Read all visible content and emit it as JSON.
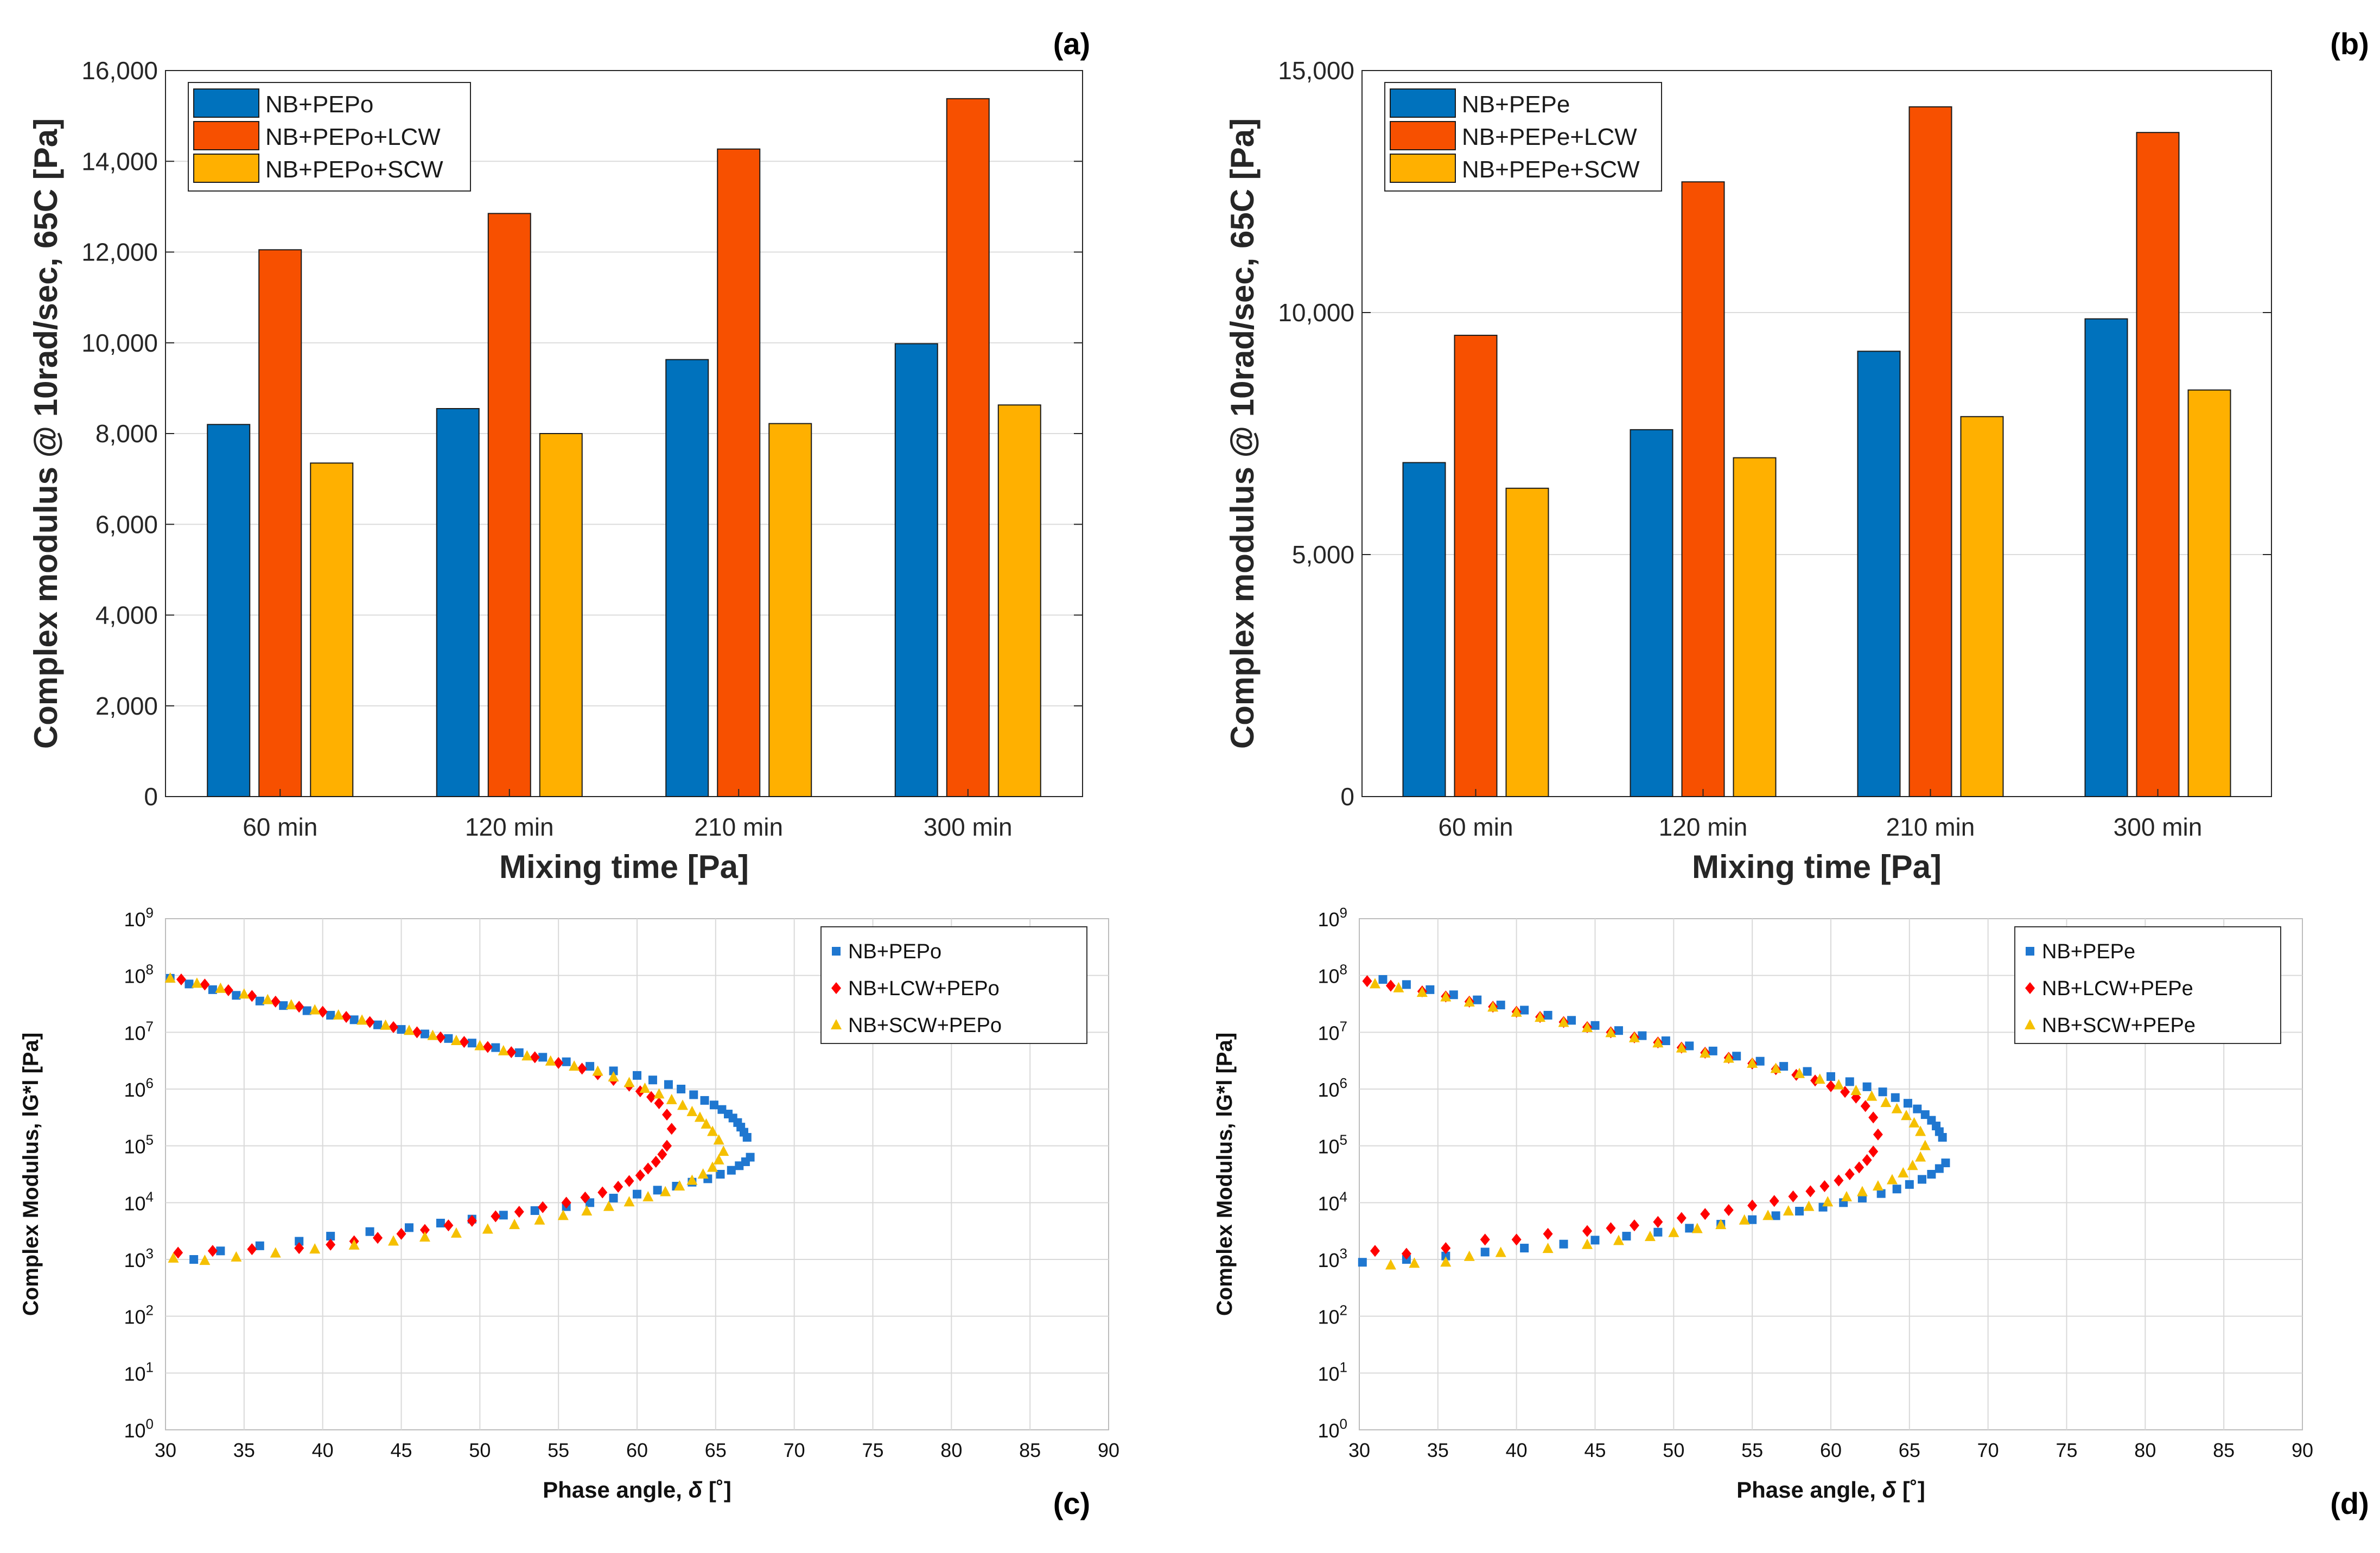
{
  "colors": {
    "blue": "#0072BD",
    "orange": "#F75000",
    "yellow": "#FFB000",
    "red": "#FF0000",
    "lightblue": "#1F77D0",
    "gold": "#F5C000"
  },
  "chart_data": [
    {
      "panel": "(a)",
      "type": "bar",
      "categories": [
        "60 min",
        "120 min",
        "210 min",
        "300 min"
      ],
      "series": [
        {
          "name": "NB+PEPo",
          "values": [
            8200,
            8550,
            9630,
            9980
          ]
        },
        {
          "name": "NB+PEPo+LCW",
          "values": [
            12050,
            12850,
            14270,
            15380
          ]
        },
        {
          "name": "NB+PEPo+SCW",
          "values": [
            7350,
            8000,
            8220,
            8630
          ]
        }
      ],
      "xlabel": "Mixing time [Pa]",
      "ylabel": "Complex modulus @ 10rad/sec, 65C [Pa]",
      "ylim": [
        0,
        16000
      ],
      "yticks": [
        0,
        2000,
        4000,
        6000,
        8000,
        10000,
        12000,
        14000,
        16000
      ],
      "ytick_labels": [
        "0",
        "2,000",
        "4,000",
        "6,000",
        "8,000",
        "10,000",
        "12,000",
        "14,000",
        "16,000"
      ],
      "legend": "top-left",
      "grid": true
    },
    {
      "panel": "(b)",
      "type": "bar",
      "categories": [
        "60 min",
        "120 min",
        "210 min",
        "300 min"
      ],
      "series": [
        {
          "name": "NB+PEPe",
          "values": [
            6900,
            7580,
            9200,
            9870
          ]
        },
        {
          "name": "NB+PEPe+LCW",
          "values": [
            9530,
            12700,
            14250,
            13720
          ]
        },
        {
          "name": "NB+PEPe+SCW",
          "values": [
            6370,
            7000,
            7850,
            8400
          ]
        }
      ],
      "xlabel": "Mixing time [Pa]",
      "ylabel": "Complex modulus @ 10rad/sec, 65C [Pa]",
      "ylim": [
        0,
        15000
      ],
      "yticks": [
        0,
        5000,
        10000,
        15000
      ],
      "ytick_labels": [
        "0",
        "5,000",
        "10,000",
        "15,000"
      ],
      "legend": "top-left",
      "grid": true
    },
    {
      "panel": "(c)",
      "type": "scatter",
      "xlabel_main": "Phase angle, ",
      "xlabel_symbol": "δ",
      "xlabel_unit": " [˚]",
      "ylabel": "Complex Modulus, lG*l [Pa]",
      "xlim": [
        30,
        90
      ],
      "xticks": [
        30,
        35,
        40,
        45,
        50,
        55,
        60,
        65,
        70,
        75,
        80,
        85,
        90
      ],
      "ylim_log10": [
        0,
        9
      ],
      "yscale": "log",
      "legend": "top-right",
      "grid": true,
      "series": [
        {
          "name": "NB+PEPo",
          "marker": "square",
          "peak": 67.2,
          "x": [
            30.3,
            31.5,
            33.0,
            34.5,
            36.0,
            37.5,
            39.0,
            40.5,
            42.0,
            43.5,
            45.0,
            46.5,
            48.0,
            49.5,
            51.0,
            52.5,
            54.0,
            55.5,
            57.0,
            58.5,
            60.0,
            61.0,
            62.0,
            62.8,
            63.6,
            64.3,
            64.9,
            65.4,
            65.8,
            66.1,
            66.4,
            66.6,
            66.8,
            67.0,
            67.2,
            66.9,
            66.5,
            66.0,
            65.3,
            64.5,
            63.5,
            62.5,
            61.3,
            60.0,
            58.5,
            57.0,
            55.5,
            53.5,
            51.5,
            49.5,
            47.5,
            45.5,
            43.0,
            40.5,
            38.5,
            36.0,
            33.5,
            31.8
          ],
          "log_y": [
            7.95,
            7.85,
            7.75,
            7.65,
            7.55,
            7.47,
            7.38,
            7.3,
            7.22,
            7.13,
            7.05,
            6.97,
            6.89,
            6.81,
            6.73,
            6.64,
            6.56,
            6.48,
            6.4,
            6.32,
            6.24,
            6.16,
            6.08,
            6.0,
            5.9,
            5.8,
            5.72,
            5.64,
            5.56,
            5.49,
            5.41,
            5.33,
            5.24,
            5.15,
            4.8,
            4.72,
            4.65,
            4.57,
            4.5,
            4.42,
            4.36,
            4.29,
            4.22,
            4.15,
            4.08,
            4.0,
            3.93,
            3.86,
            3.78,
            3.71,
            3.64,
            3.56,
            3.49,
            3.41,
            3.32,
            3.24,
            3.15,
            3.0
          ]
        },
        {
          "name": "NB+LCW+PEPo",
          "marker": "diamond",
          "peak": 62.2,
          "x": [
            31.0,
            32.5,
            34.0,
            35.5,
            37.0,
            38.5,
            40.0,
            41.5,
            43.0,
            44.5,
            46.0,
            47.5,
            49.0,
            50.5,
            52.0,
            53.5,
            55.0,
            56.5,
            57.5,
            58.5,
            59.5,
            60.2,
            60.9,
            61.4,
            61.9,
            62.2,
            61.9,
            61.6,
            61.2,
            60.7,
            60.2,
            59.5,
            58.8,
            57.8,
            56.7,
            55.5,
            54.0,
            52.5,
            51.0,
            49.5,
            48.0,
            46.5,
            45.0,
            43.5,
            42.0,
            40.5,
            38.5,
            35.5,
            33.0,
            30.8
          ],
          "log_y": [
            7.93,
            7.84,
            7.74,
            7.64,
            7.54,
            7.45,
            7.36,
            7.27,
            7.18,
            7.09,
            7.0,
            6.91,
            6.83,
            6.74,
            6.65,
            6.56,
            6.46,
            6.36,
            6.26,
            6.16,
            6.06,
            5.96,
            5.86,
            5.75,
            5.55,
            5.3,
            5.0,
            4.85,
            4.72,
            4.6,
            4.48,
            4.38,
            4.28,
            4.18,
            4.09,
            4.0,
            3.92,
            3.84,
            3.76,
            3.68,
            3.6,
            3.52,
            3.45,
            3.38,
            3.32,
            3.26,
            3.2,
            3.18,
            3.15,
            3.12
          ]
        },
        {
          "name": "NB+SCW+PEPo",
          "marker": "triangle",
          "peak": 65.5,
          "x": [
            30.3,
            32.0,
            33.5,
            35.0,
            36.5,
            38.0,
            39.5,
            41.0,
            42.5,
            44.0,
            45.5,
            47.0,
            48.5,
            50.0,
            51.5,
            53.0,
            54.5,
            56.0,
            57.5,
            58.5,
            59.5,
            60.5,
            61.4,
            62.2,
            62.9,
            63.5,
            64.0,
            64.4,
            64.8,
            65.2,
            65.5,
            65.2,
            64.8,
            64.2,
            63.5,
            62.7,
            61.8,
            60.7,
            59.5,
            58.2,
            56.8,
            55.3,
            53.8,
            52.2,
            50.5,
            48.5,
            46.5,
            44.5,
            42.0,
            39.5,
            37.0,
            34.5,
            32.5,
            30.5
          ],
          "log_y": [
            7.95,
            7.86,
            7.77,
            7.67,
            7.57,
            7.48,
            7.39,
            7.3,
            7.21,
            7.12,
            7.03,
            6.94,
            6.85,
            6.76,
            6.67,
            6.58,
            6.49,
            6.4,
            6.31,
            6.21,
            6.11,
            6.01,
            5.91,
            5.81,
            5.71,
            5.6,
            5.5,
            5.38,
            5.25,
            5.1,
            4.9,
            4.75,
            4.62,
            4.5,
            4.39,
            4.29,
            4.19,
            4.1,
            4.01,
            3.93,
            3.85,
            3.77,
            3.69,
            3.61,
            3.53,
            3.46,
            3.39,
            3.32,
            3.25,
            3.18,
            3.11,
            3.04,
            2.98,
            3.02
          ]
        }
      ]
    },
    {
      "panel": "(d)",
      "type": "scatter",
      "xlabel_main": "Phase angle, ",
      "xlabel_symbol": "δ",
      "xlabel_unit": " [˚]",
      "ylabel": "Complex Modulus, lG*l [Pa]",
      "xlim": [
        30,
        90
      ],
      "xticks": [
        30,
        35,
        40,
        45,
        50,
        55,
        60,
        65,
        70,
        75,
        80,
        85,
        90
      ],
      "ylim_log10": [
        0,
        9
      ],
      "yscale": "log",
      "legend": "top-right",
      "grid": true,
      "series": [
        {
          "name": "NB+PEPe",
          "marker": "square",
          "peak": 67.3,
          "x": [
            31.5,
            33.0,
            34.5,
            36.0,
            37.5,
            39.0,
            40.5,
            42.0,
            43.5,
            45.0,
            46.5,
            48.0,
            49.5,
            51.0,
            52.5,
            54.0,
            55.5,
            57.0,
            58.5,
            60.0,
            61.2,
            62.3,
            63.3,
            64.1,
            64.9,
            65.5,
            66.0,
            66.4,
            66.7,
            66.9,
            67.1,
            67.3,
            66.9,
            66.4,
            65.8,
            65.0,
            64.2,
            63.2,
            62.0,
            60.8,
            59.5,
            58.0,
            56.5,
            55.0,
            53.0,
            51.0,
            49.0,
            47.0,
            45.0,
            43.0,
            40.5,
            38.0,
            35.5,
            33.0,
            30.2
          ],
          "log_y": [
            7.93,
            7.84,
            7.75,
            7.66,
            7.57,
            7.48,
            7.39,
            7.3,
            7.21,
            7.12,
            7.03,
            6.94,
            6.85,
            6.76,
            6.67,
            6.58,
            6.49,
            6.4,
            6.31,
            6.22,
            6.13,
            6.04,
            5.95,
            5.85,
            5.75,
            5.65,
            5.55,
            5.45,
            5.35,
            5.25,
            5.15,
            4.7,
            4.6,
            4.5,
            4.41,
            4.32,
            4.24,
            4.16,
            4.08,
            4.0,
            3.92,
            3.85,
            3.77,
            3.7,
            3.62,
            3.55,
            3.48,
            3.41,
            3.34,
            3.27,
            3.2,
            3.13,
            3.06,
            3.0,
            2.95
          ]
        },
        {
          "name": "NB+LCW+PEPe",
          "marker": "diamond",
          "peak": 63.0,
          "x": [
            30.5,
            32.0,
            34.0,
            35.5,
            37.0,
            38.5,
            40.0,
            41.5,
            43.0,
            44.5,
            46.0,
            47.5,
            49.0,
            50.5,
            52.0,
            53.5,
            55.0,
            56.5,
            57.8,
            59.0,
            60.0,
            60.9,
            61.6,
            62.2,
            62.7,
            63.0,
            62.7,
            62.3,
            61.8,
            61.2,
            60.5,
            59.6,
            58.7,
            57.6,
            56.4,
            55.0,
            53.5,
            52.0,
            50.5,
            49.0,
            47.5,
            46.0,
            44.5,
            42.0,
            40.0,
            38.0,
            35.5,
            33.0,
            31.0
          ],
          "log_y": [
            7.9,
            7.82,
            7.72,
            7.63,
            7.54,
            7.45,
            7.36,
            7.27,
            7.18,
            7.09,
            7.0,
            6.91,
            6.82,
            6.73,
            6.64,
            6.55,
            6.45,
            6.35,
            6.25,
            6.15,
            6.05,
            5.95,
            5.85,
            5.7,
            5.5,
            5.2,
            4.9,
            4.75,
            4.62,
            4.5,
            4.39,
            4.29,
            4.2,
            4.11,
            4.03,
            3.95,
            3.87,
            3.8,
            3.73,
            3.66,
            3.6,
            3.55,
            3.5,
            3.45,
            3.35,
            3.35,
            3.2,
            3.1,
            3.15
          ]
        },
        {
          "name": "NB+SCW+PEPe",
          "marker": "triangle",
          "peak": 66.0,
          "x": [
            31.0,
            32.5,
            34.0,
            35.5,
            37.0,
            38.5,
            40.0,
            41.5,
            43.0,
            44.5,
            46.0,
            47.5,
            49.0,
            50.5,
            52.0,
            53.5,
            55.0,
            56.5,
            58.0,
            59.3,
            60.5,
            61.6,
            62.6,
            63.5,
            64.2,
            64.8,
            65.3,
            65.7,
            66.0,
            65.7,
            65.2,
            64.6,
            63.9,
            63.0,
            62.0,
            61.0,
            59.8,
            58.6,
            57.3,
            56.0,
            54.5,
            53.0,
            51.5,
            50.0,
            48.5,
            46.5,
            44.5,
            42.0,
            39.0,
            37.0,
            35.5,
            33.5,
            32.0
          ],
          "log_y": [
            7.85,
            7.78,
            7.7,
            7.62,
            7.53,
            7.44,
            7.35,
            7.26,
            7.17,
            7.08,
            6.99,
            6.9,
            6.81,
            6.72,
            6.63,
            6.54,
            6.45,
            6.36,
            6.27,
            6.17,
            6.07,
            5.97,
            5.87,
            5.76,
            5.65,
            5.53,
            5.4,
            5.25,
            5.0,
            4.8,
            4.65,
            4.52,
            4.4,
            4.29,
            4.19,
            4.1,
            4.01,
            3.93,
            3.85,
            3.77,
            3.69,
            3.61,
            3.54,
            3.47,
            3.4,
            3.33,
            3.26,
            3.19,
            3.12,
            3.05,
            2.95,
            2.93,
            2.9
          ]
        }
      ]
    }
  ]
}
